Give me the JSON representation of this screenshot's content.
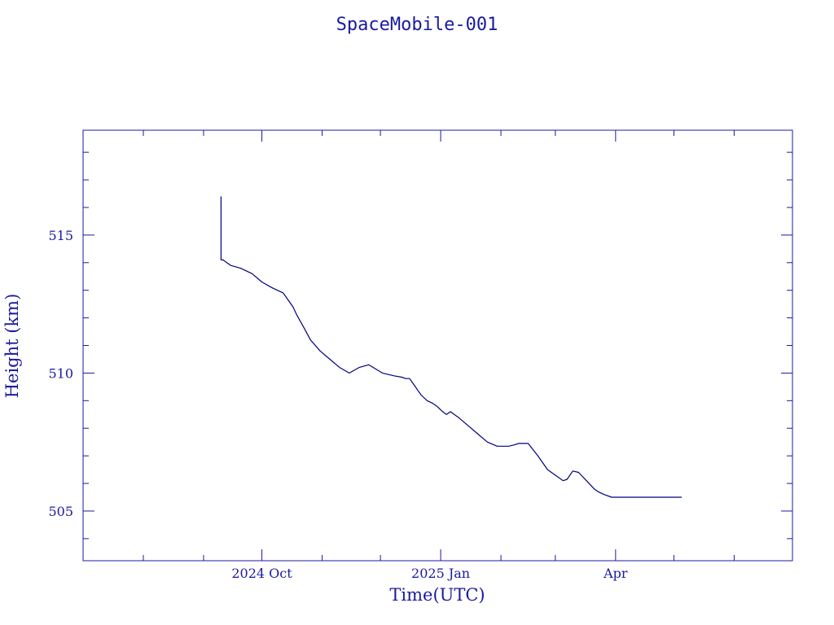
{
  "chart_data": {
    "type": "line",
    "title": "SpaceMobile-001",
    "xlabel": "Time(UTC)",
    "ylabel": "Height (km)",
    "xlim": [
      "2024-07-01",
      "2025-07-01"
    ],
    "ylim": [
      503.2,
      518.8
    ],
    "x_ticks": [
      {
        "date": "2024-10-01",
        "label": "2024 Oct"
      },
      {
        "date": "2025-01-01",
        "label": "2025 Jan"
      },
      {
        "date": "2025-04-01",
        "label": "Apr"
      }
    ],
    "y_ticks": [
      505,
      510,
      515
    ],
    "y_minor_step": 1,
    "grid": false,
    "legend": "none",
    "colors": {
      "line": "#000080",
      "axes": "#1a1aa0",
      "text": "#1a1aa0"
    },
    "series": [
      {
        "x": [
          "2024-09-10",
          "2024-09-10",
          "2024-09-10",
          "2024-09-11",
          "2024-09-15",
          "2024-09-20",
          "2024-09-26",
          "2024-10-01",
          "2024-10-06",
          "2024-10-12",
          "2024-10-17",
          "2024-10-19",
          "2024-10-23",
          "2024-10-26",
          "2024-10-31",
          "2024-11-05",
          "2024-11-10",
          "2024-11-15",
          "2024-11-20",
          "2024-11-25",
          "2024-12-02",
          "2024-12-08",
          "2024-12-12",
          "2024-12-14",
          "2024-12-16",
          "2024-12-18",
          "2024-12-19",
          "2024-12-20",
          "2024-12-22",
          "2024-12-25",
          "2024-12-28",
          "2024-12-30",
          "2025-01-02",
          "2025-01-04",
          "2025-01-06",
          "2025-01-10",
          "2025-01-15",
          "2025-01-20",
          "2025-01-25",
          "2025-01-30",
          "2025-02-05",
          "2025-02-08",
          "2025-02-10",
          "2025-02-15",
          "2025-02-20",
          "2025-02-25",
          "2025-03-02",
          "2025-03-05",
          "2025-03-07",
          "2025-03-10",
          "2025-03-13",
          "2025-03-15",
          "2025-03-17",
          "2025-03-19",
          "2025-03-21",
          "2025-03-23",
          "2025-03-26",
          "2025-03-30",
          "2025-04-03",
          "2025-04-08",
          "2025-04-10",
          "2025-04-12",
          "2025-04-14",
          "2025-04-15",
          "2025-04-18",
          "2025-04-22",
          "2025-04-27",
          "2025-05-02",
          "2025-05-05"
        ],
        "y": [
          516.4,
          516.0,
          514.1,
          514.1,
          513.9,
          513.8,
          513.6,
          513.3,
          513.1,
          512.9,
          512.4,
          512.1,
          511.6,
          511.2,
          510.8,
          510.5,
          510.2,
          510.0,
          510.2,
          510.3,
          510.0,
          509.9,
          509.85,
          509.8,
          509.8,
          509.6,
          509.5,
          509.4,
          509.2,
          509.0,
          508.9,
          508.8,
          508.6,
          508.5,
          508.6,
          508.4,
          508.1,
          507.8,
          507.5,
          507.35,
          507.35,
          507.4,
          507.45,
          507.45,
          507.0,
          506.5,
          506.25,
          506.1,
          506.15,
          506.45,
          506.4,
          506.25,
          506.1,
          505.95,
          505.8,
          505.7,
          505.6,
          505.5,
          505.5,
          505.5,
          505.5,
          505.5,
          505.5,
          505.5,
          505.5,
          505.5,
          505.5,
          505.5,
          505.5
        ]
      }
    ]
  }
}
